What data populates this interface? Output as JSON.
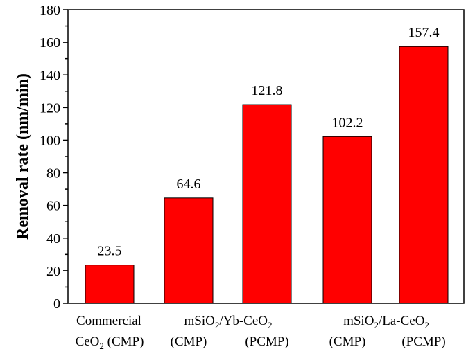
{
  "chart_data": {
    "type": "bar",
    "title": "",
    "xlabel": "",
    "ylabel": "Removal rate (nm/min)",
    "ylim": [
      0,
      180
    ],
    "yticks": [
      0,
      20,
      40,
      60,
      80,
      100,
      120,
      140,
      160,
      180
    ],
    "grid": false,
    "bar_color": "#ff0000",
    "bar_edge_color": "#000000",
    "categories": [
      "Commercial CeO2 (CMP)",
      "mSiO2/Yb-CeO2 (CMP)",
      "mSiO2/Yb-CeO2 (PCMP)",
      "mSiO2/La-CeO2 (CMP)",
      "mSiO2/La-CeO2 (PCMP)"
    ],
    "values": [
      23.5,
      64.6,
      121.8,
      102.2,
      157.4
    ],
    "value_labels": [
      "23.5",
      "64.6",
      "121.8",
      "102.2",
      "157.4"
    ],
    "x_axis_text": {
      "commercial": "Commercial",
      "ceo2_cmp": {
        "base": "CeO",
        "sub": "2",
        "tail": " (CMP)"
      },
      "yb_group": {
        "a": "mSiO",
        "a_sub": "2",
        "b": "/Yb-CeO",
        "b_sub": "2"
      },
      "la_group": {
        "a": "mSiO",
        "a_sub": "2",
        "b": "/La-CeO",
        "b_sub": "2"
      },
      "cmp": "(CMP)",
      "pcmp": "(PCMP)"
    }
  }
}
